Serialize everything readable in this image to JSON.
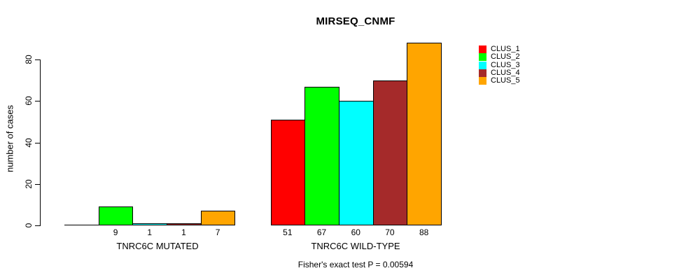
{
  "chart_data": {
    "type": "bar",
    "title": "MIRSEQ_CNMF",
    "ylabel": "number of cases",
    "xlabel": "",
    "ylim": [
      0,
      88
    ],
    "yticks": [
      0,
      20,
      40,
      60,
      80
    ],
    "grid": false,
    "legend_position": "right",
    "background_color": "#ffffff",
    "axis_color": "#000000",
    "clusters": [
      {
        "name": "CLUS_1",
        "color": "#FF0000"
      },
      {
        "name": "CLUS_2",
        "color": "#00FF00"
      },
      {
        "name": "CLUS_3",
        "color": "#00FFFF"
      },
      {
        "name": "CLUS_4",
        "color": "#A52A2A"
      },
      {
        "name": "CLUS_5",
        "color": "#FFA500"
      }
    ],
    "categories": [
      "TNRC6C MUTATED",
      "TNRC6C WILD-TYPE"
    ],
    "series": [
      {
        "name": "CLUS_1",
        "values": [
          0,
          51
        ]
      },
      {
        "name": "CLUS_2",
        "values": [
          9,
          67
        ]
      },
      {
        "name": "CLUS_3",
        "values": [
          1,
          60
        ]
      },
      {
        "name": "CLUS_4",
        "values": [
          1,
          70
        ]
      },
      {
        "name": "CLUS_5",
        "values": [
          7,
          88
        ]
      }
    ],
    "bar_value_labels": [
      [
        "",
        "9",
        "1",
        "1",
        "7"
      ],
      [
        "51",
        "67",
        "60",
        "70",
        "88"
      ]
    ],
    "footnote": "Fisher's exact test P = 0.00594"
  }
}
